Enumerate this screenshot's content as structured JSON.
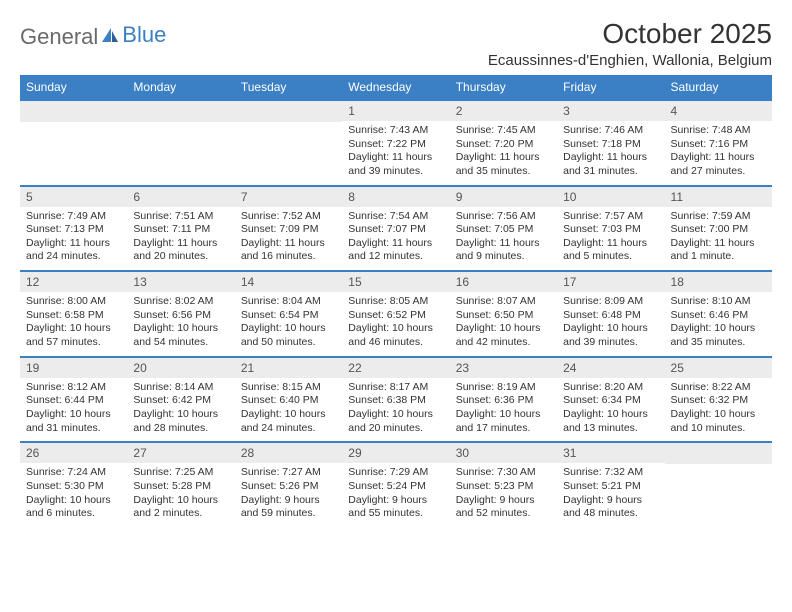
{
  "logo": {
    "text1": "General",
    "text2": "Blue"
  },
  "title": "October 2025",
  "location": "Ecaussinnes-d'Enghien, Wallonia, Belgium",
  "colors": {
    "brand_blue": "#3b7fc4",
    "daynum_bg": "#ececec",
    "text": "#333333",
    "logo_gray": "#6a6a6a",
    "background": "#ffffff"
  },
  "typography": {
    "month_title_fontsize": 28,
    "location_fontsize": 15,
    "dow_fontsize": 12,
    "body_fontsize": 10.5
  },
  "days_of_week": [
    "Sunday",
    "Monday",
    "Tuesday",
    "Wednesday",
    "Thursday",
    "Friday",
    "Saturday"
  ],
  "weeks": [
    [
      null,
      null,
      null,
      {
        "n": "1",
        "sr": "Sunrise: 7:43 AM",
        "ss": "Sunset: 7:22 PM",
        "dl": "Daylight: 11 hours and 39 minutes."
      },
      {
        "n": "2",
        "sr": "Sunrise: 7:45 AM",
        "ss": "Sunset: 7:20 PM",
        "dl": "Daylight: 11 hours and 35 minutes."
      },
      {
        "n": "3",
        "sr": "Sunrise: 7:46 AM",
        "ss": "Sunset: 7:18 PM",
        "dl": "Daylight: 11 hours and 31 minutes."
      },
      {
        "n": "4",
        "sr": "Sunrise: 7:48 AM",
        "ss": "Sunset: 7:16 PM",
        "dl": "Daylight: 11 hours and 27 minutes."
      }
    ],
    [
      {
        "n": "5",
        "sr": "Sunrise: 7:49 AM",
        "ss": "Sunset: 7:13 PM",
        "dl": "Daylight: 11 hours and 24 minutes."
      },
      {
        "n": "6",
        "sr": "Sunrise: 7:51 AM",
        "ss": "Sunset: 7:11 PM",
        "dl": "Daylight: 11 hours and 20 minutes."
      },
      {
        "n": "7",
        "sr": "Sunrise: 7:52 AM",
        "ss": "Sunset: 7:09 PM",
        "dl": "Daylight: 11 hours and 16 minutes."
      },
      {
        "n": "8",
        "sr": "Sunrise: 7:54 AM",
        "ss": "Sunset: 7:07 PM",
        "dl": "Daylight: 11 hours and 12 minutes."
      },
      {
        "n": "9",
        "sr": "Sunrise: 7:56 AM",
        "ss": "Sunset: 7:05 PM",
        "dl": "Daylight: 11 hours and 9 minutes."
      },
      {
        "n": "10",
        "sr": "Sunrise: 7:57 AM",
        "ss": "Sunset: 7:03 PM",
        "dl": "Daylight: 11 hours and 5 minutes."
      },
      {
        "n": "11",
        "sr": "Sunrise: 7:59 AM",
        "ss": "Sunset: 7:00 PM",
        "dl": "Daylight: 11 hours and 1 minute."
      }
    ],
    [
      {
        "n": "12",
        "sr": "Sunrise: 8:00 AM",
        "ss": "Sunset: 6:58 PM",
        "dl": "Daylight: 10 hours and 57 minutes."
      },
      {
        "n": "13",
        "sr": "Sunrise: 8:02 AM",
        "ss": "Sunset: 6:56 PM",
        "dl": "Daylight: 10 hours and 54 minutes."
      },
      {
        "n": "14",
        "sr": "Sunrise: 8:04 AM",
        "ss": "Sunset: 6:54 PM",
        "dl": "Daylight: 10 hours and 50 minutes."
      },
      {
        "n": "15",
        "sr": "Sunrise: 8:05 AM",
        "ss": "Sunset: 6:52 PM",
        "dl": "Daylight: 10 hours and 46 minutes."
      },
      {
        "n": "16",
        "sr": "Sunrise: 8:07 AM",
        "ss": "Sunset: 6:50 PM",
        "dl": "Daylight: 10 hours and 42 minutes."
      },
      {
        "n": "17",
        "sr": "Sunrise: 8:09 AM",
        "ss": "Sunset: 6:48 PM",
        "dl": "Daylight: 10 hours and 39 minutes."
      },
      {
        "n": "18",
        "sr": "Sunrise: 8:10 AM",
        "ss": "Sunset: 6:46 PM",
        "dl": "Daylight: 10 hours and 35 minutes."
      }
    ],
    [
      {
        "n": "19",
        "sr": "Sunrise: 8:12 AM",
        "ss": "Sunset: 6:44 PM",
        "dl": "Daylight: 10 hours and 31 minutes."
      },
      {
        "n": "20",
        "sr": "Sunrise: 8:14 AM",
        "ss": "Sunset: 6:42 PM",
        "dl": "Daylight: 10 hours and 28 minutes."
      },
      {
        "n": "21",
        "sr": "Sunrise: 8:15 AM",
        "ss": "Sunset: 6:40 PM",
        "dl": "Daylight: 10 hours and 24 minutes."
      },
      {
        "n": "22",
        "sr": "Sunrise: 8:17 AM",
        "ss": "Sunset: 6:38 PM",
        "dl": "Daylight: 10 hours and 20 minutes."
      },
      {
        "n": "23",
        "sr": "Sunrise: 8:19 AM",
        "ss": "Sunset: 6:36 PM",
        "dl": "Daylight: 10 hours and 17 minutes."
      },
      {
        "n": "24",
        "sr": "Sunrise: 8:20 AM",
        "ss": "Sunset: 6:34 PM",
        "dl": "Daylight: 10 hours and 13 minutes."
      },
      {
        "n": "25",
        "sr": "Sunrise: 8:22 AM",
        "ss": "Sunset: 6:32 PM",
        "dl": "Daylight: 10 hours and 10 minutes."
      }
    ],
    [
      {
        "n": "26",
        "sr": "Sunrise: 7:24 AM",
        "ss": "Sunset: 5:30 PM",
        "dl": "Daylight: 10 hours and 6 minutes."
      },
      {
        "n": "27",
        "sr": "Sunrise: 7:25 AM",
        "ss": "Sunset: 5:28 PM",
        "dl": "Daylight: 10 hours and 2 minutes."
      },
      {
        "n": "28",
        "sr": "Sunrise: 7:27 AM",
        "ss": "Sunset: 5:26 PM",
        "dl": "Daylight: 9 hours and 59 minutes."
      },
      {
        "n": "29",
        "sr": "Sunrise: 7:29 AM",
        "ss": "Sunset: 5:24 PM",
        "dl": "Daylight: 9 hours and 55 minutes."
      },
      {
        "n": "30",
        "sr": "Sunrise: 7:30 AM",
        "ss": "Sunset: 5:23 PM",
        "dl": "Daylight: 9 hours and 52 minutes."
      },
      {
        "n": "31",
        "sr": "Sunrise: 7:32 AM",
        "ss": "Sunset: 5:21 PM",
        "dl": "Daylight: 9 hours and 48 minutes."
      },
      null
    ]
  ]
}
